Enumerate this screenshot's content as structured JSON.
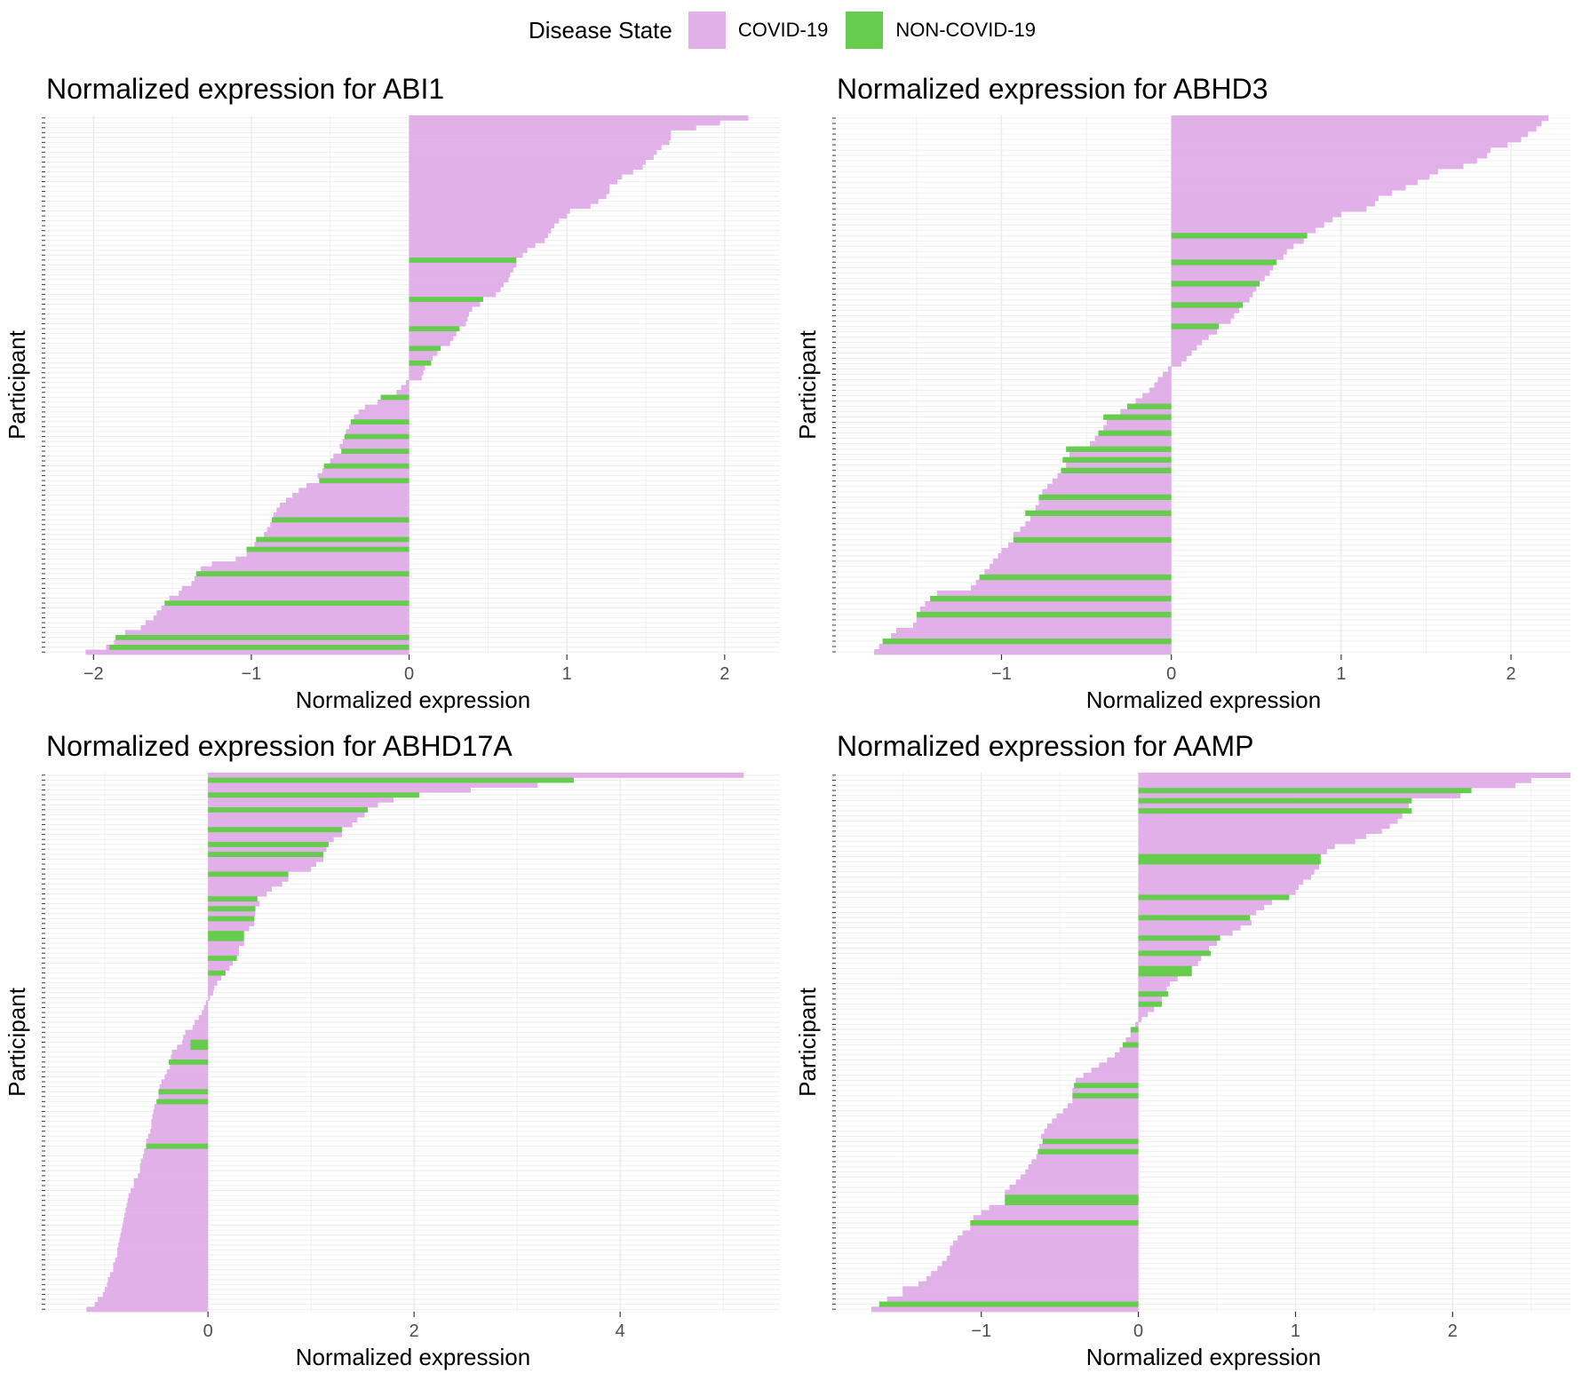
{
  "legend": {
    "title": "Disease State",
    "items": [
      {
        "label": "COVID-19",
        "color": "#e2b0e8"
      },
      {
        "label": "NON-COVID-19",
        "color": "#66cc4d"
      }
    ]
  },
  "chart_data": [
    {
      "type": "bar",
      "orientation": "horizontal",
      "title": "Normalized expression for ABI1",
      "xlabel": "Normalized expression",
      "ylabel": "Participant",
      "xlim": [
        -2.3,
        2.35
      ],
      "xticks": [
        -2,
        -1,
        0,
        1,
        2
      ],
      "grid": true,
      "series": [
        {
          "name": "COVID-19",
          "values": [
            2.15,
            1.97,
            1.82,
            1.66,
            1.66,
            1.65,
            1.6,
            1.57,
            1.55,
            1.5,
            1.48,
            1.42,
            1.35,
            1.32,
            1.27,
            1.27,
            1.25,
            1.2,
            1.15,
            1.02,
            1.0,
            0.95,
            0.92,
            0.9,
            0.88,
            0.86,
            0.8,
            0.75,
            0.72,
            null,
            0.68,
            0.66,
            0.64,
            0.63,
            0.6,
            0.58,
            0.55,
            null,
            0.45,
            0.4,
            0.38,
            0.37,
            0.36,
            null,
            0.3,
            0.28,
            0.26,
            null,
            0.18,
            0.15,
            null,
            0.1,
            0.09,
            0.08,
            -0.02,
            -0.05,
            -0.08,
            null,
            -0.2,
            -0.28,
            -0.32,
            -0.35,
            null,
            -0.38,
            -0.4,
            null,
            -0.42,
            -0.44,
            null,
            -0.48,
            -0.5,
            null,
            -0.55,
            -0.58,
            null,
            -0.65,
            -0.7,
            -0.74,
            -0.78,
            -0.82,
            -0.84,
            -0.86,
            null,
            -0.88,
            -0.9,
            -0.92,
            null,
            -0.98,
            null,
            -1.03,
            -1.1,
            -1.25,
            -1.32,
            null,
            -1.36,
            -1.38,
            -1.44,
            -1.46,
            -1.52,
            null,
            -1.57,
            -1.6,
            -1.62,
            -1.67,
            -1.7,
            -1.8,
            -1.83,
            -1.87,
            -1.92,
            -2.05
          ]
        },
        {
          "name": "NON-COVID-19",
          "values": [
            null,
            null,
            null,
            null,
            null,
            null,
            null,
            null,
            null,
            null,
            null,
            null,
            null,
            null,
            null,
            null,
            null,
            null,
            null,
            null,
            null,
            null,
            null,
            null,
            null,
            null,
            null,
            null,
            null,
            0.68,
            null,
            null,
            null,
            null,
            null,
            null,
            null,
            0.47,
            null,
            null,
            null,
            null,
            null,
            0.32,
            null,
            null,
            null,
            0.2,
            null,
            null,
            0.14,
            null,
            null,
            null,
            null,
            null,
            null,
            -0.18,
            null,
            null,
            null,
            null,
            -0.37,
            null,
            null,
            -0.41,
            null,
            null,
            -0.43,
            null,
            null,
            -0.54,
            null,
            null,
            -0.57,
            null,
            null,
            null,
            null,
            null,
            null,
            null,
            -0.87,
            null,
            null,
            null,
            -0.97,
            null,
            -1.03,
            null,
            null,
            null,
            null,
            -1.35,
            null,
            null,
            null,
            null,
            null,
            -1.55,
            null,
            null,
            null,
            null,
            null,
            null,
            -1.86,
            null,
            -1.9,
            null
          ]
        }
      ]
    },
    {
      "type": "bar",
      "orientation": "horizontal",
      "title": "Normalized expression for ABHD3",
      "xlabel": "Normalized expression",
      "ylabel": "Participant",
      "xlim": [
        -1.97,
        2.35
      ],
      "xticks": [
        -1,
        0,
        1,
        2
      ],
      "grid": true,
      "series": [
        {
          "name": "COVID-19",
          "values": [
            2.22,
            2.18,
            2.15,
            2.1,
            2.06,
            1.98,
            1.88,
            1.86,
            1.8,
            1.72,
            1.57,
            1.52,
            1.45,
            1.38,
            1.3,
            1.22,
            1.2,
            1.15,
            1.0,
            0.95,
            0.9,
            0.85,
            null,
            0.78,
            0.72,
            0.68,
            0.66,
            null,
            0.6,
            0.58,
            0.55,
            null,
            0.5,
            0.48,
            0.46,
            null,
            0.4,
            0.37,
            0.35,
            null,
            0.27,
            0.22,
            0.18,
            0.15,
            0.12,
            0.09,
            0.06,
            -0.02,
            -0.05,
            -0.08,
            -0.1,
            -0.13,
            -0.17,
            -0.21,
            null,
            -0.3,
            null,
            -0.38,
            -0.4,
            null,
            -0.45,
            -0.48,
            null,
            -0.6,
            null,
            -0.62,
            null,
            -0.67,
            -0.7,
            -0.73,
            -0.76,
            null,
            -0.78,
            -0.8,
            null,
            -0.83,
            -0.86,
            -0.89,
            -0.93,
            null,
            -0.96,
            -1.0,
            -1.02,
            -1.05,
            -1.07,
            -1.1,
            null,
            -1.15,
            -1.18,
            -1.38,
            null,
            -1.45,
            -1.48,
            null,
            -1.5,
            -1.52,
            -1.62,
            -1.65,
            -1.68,
            -1.72,
            -1.75
          ]
        },
        {
          "name": "NON-COVID-19",
          "values": [
            null,
            null,
            null,
            null,
            null,
            null,
            null,
            null,
            null,
            null,
            null,
            null,
            null,
            null,
            null,
            null,
            null,
            null,
            null,
            null,
            null,
            null,
            0.8,
            null,
            null,
            null,
            null,
            0.62,
            null,
            null,
            null,
            0.52,
            null,
            null,
            null,
            0.42,
            null,
            null,
            null,
            0.28,
            null,
            null,
            null,
            null,
            null,
            null,
            null,
            null,
            null,
            null,
            null,
            null,
            null,
            null,
            -0.26,
            null,
            -0.4,
            null,
            null,
            -0.43,
            null,
            null,
            -0.62,
            null,
            -0.64,
            null,
            -0.65,
            null,
            null,
            null,
            null,
            -0.78,
            null,
            null,
            -0.86,
            null,
            null,
            null,
            null,
            -0.93,
            null,
            null,
            null,
            null,
            null,
            null,
            -1.13,
            null,
            null,
            null,
            -1.42,
            null,
            null,
            -1.5,
            null,
            null,
            null,
            null,
            -1.7,
            null,
            null
          ]
        }
      ]
    },
    {
      "type": "bar",
      "orientation": "horizontal",
      "title": "Normalized expression for ABHD17A",
      "xlabel": "Normalized expression",
      "ylabel": "Participant",
      "xlim": [
        -1.57,
        5.55
      ],
      "xticks": [
        0,
        2,
        4
      ],
      "grid": true,
      "series": [
        {
          "name": "COVID-19",
          "values": [
            5.2,
            null,
            3.2,
            2.55,
            null,
            1.8,
            1.65,
            null,
            1.52,
            1.45,
            1.4,
            null,
            1.3,
            1.22,
            null,
            1.15,
            null,
            1.12,
            1.05,
            1.0,
            null,
            0.78,
            0.72,
            0.62,
            0.57,
            null,
            0.5,
            null,
            0.46,
            null,
            0.45,
            0.4,
            null,
            null,
            0.35,
            0.3,
            0.3,
            null,
            0.24,
            0.21,
            null,
            0.13,
            0.09,
            0.06,
            0.05,
            0.02,
            -0.02,
            -0.04,
            -0.06,
            -0.09,
            -0.13,
            -0.15,
            -0.22,
            -0.24,
            -0.25,
            -0.3,
            -0.35,
            -0.36,
            null,
            -0.37,
            -0.4,
            -0.42,
            -0.45,
            -0.47,
            null,
            -0.48,
            null,
            -0.52,
            -0.53,
            -0.54,
            -0.55,
            -0.55,
            -0.56,
            -0.58,
            -0.6,
            null,
            -0.62,
            -0.63,
            -0.65,
            -0.66,
            -0.66,
            -0.68,
            -0.72,
            -0.72,
            -0.75,
            -0.77,
            -0.78,
            -0.79,
            -0.8,
            -0.81,
            -0.82,
            -0.83,
            -0.84,
            -0.85,
            -0.86,
            -0.87,
            -0.88,
            -0.88,
            -0.9,
            -0.92,
            -0.92,
            -0.95,
            -0.97,
            -0.98,
            -1.0,
            -1.02,
            -1.07,
            -1.1,
            -1.18
          ]
        },
        {
          "name": "NON-COVID-19",
          "values": [
            null,
            3.55,
            null,
            null,
            2.05,
            null,
            null,
            1.55,
            null,
            null,
            null,
            1.3,
            null,
            null,
            1.17,
            null,
            1.12,
            null,
            null,
            null,
            0.78,
            null,
            null,
            null,
            null,
            0.48,
            null,
            0.46,
            null,
            0.45,
            null,
            null,
            0.35,
            0.35,
            null,
            null,
            null,
            0.28,
            null,
            null,
            0.17,
            null,
            null,
            null,
            null,
            null,
            null,
            null,
            null,
            null,
            null,
            null,
            null,
            null,
            -0.17,
            -0.17,
            null,
            null,
            -0.38,
            null,
            null,
            null,
            null,
            null,
            -0.48,
            null,
            -0.5,
            null,
            null,
            null,
            null,
            null,
            null,
            null,
            null,
            -0.6,
            null,
            null,
            null,
            null,
            null,
            null,
            null,
            null,
            null,
            null,
            null,
            null,
            null,
            null,
            null,
            null,
            null,
            null,
            null,
            null,
            null,
            null,
            null,
            null,
            null,
            null,
            null,
            null,
            null,
            null,
            null,
            null,
            null
          ]
        }
      ]
    },
    {
      "type": "bar",
      "orientation": "horizontal",
      "title": "Normalized expression for AAMP",
      "xlabel": "Normalized expression",
      "ylabel": "Participant",
      "xlim": [
        -1.92,
        2.75
      ],
      "xticks": [
        -1,
        0,
        1,
        2
      ],
      "grid": true,
      "series": [
        {
          "name": "COVID-19",
          "values": [
            2.75,
            2.5,
            2.4,
            null,
            2.05,
            null,
            1.72,
            null,
            1.68,
            1.65,
            1.6,
            1.55,
            1.45,
            1.38,
            1.25,
            1.2,
            null,
            null,
            1.15,
            1.12,
            1.1,
            1.05,
            1.02,
            1.0,
            null,
            0.85,
            0.8,
            0.75,
            null,
            0.72,
            0.65,
            0.6,
            null,
            0.5,
            0.45,
            null,
            0.4,
            0.38,
            null,
            null,
            0.25,
            0.2,
            0.18,
            null,
            0.15,
            null,
            0.1,
            0.06,
            0.02,
            -0.02,
            null,
            -0.05,
            -0.08,
            null,
            -0.12,
            -0.15,
            -0.2,
            -0.25,
            -0.3,
            -0.35,
            -0.4,
            null,
            -0.42,
            null,
            -0.42,
            -0.45,
            -0.48,
            -0.52,
            -0.55,
            -0.58,
            -0.6,
            -0.62,
            null,
            -0.63,
            null,
            -0.65,
            -0.68,
            -0.7,
            -0.72,
            -0.75,
            -0.78,
            -0.82,
            -0.85,
            null,
            null,
            -0.95,
            -1.0,
            -1.05,
            null,
            -1.07,
            -1.12,
            -1.15,
            -1.18,
            -1.2,
            -1.2,
            -1.22,
            -1.25,
            -1.28,
            -1.32,
            -1.35,
            -1.4,
            -1.5,
            -1.5,
            -1.6,
            null,
            -1.7
          ]
        },
        {
          "name": "NON-COVID-19",
          "values": [
            null,
            null,
            null,
            2.12,
            null,
            1.74,
            null,
            1.74,
            null,
            null,
            null,
            null,
            null,
            null,
            null,
            null,
            1.16,
            1.16,
            null,
            null,
            null,
            null,
            null,
            null,
            0.96,
            null,
            null,
            null,
            0.71,
            null,
            null,
            null,
            0.52,
            null,
            null,
            0.46,
            null,
            null,
            0.34,
            0.34,
            null,
            null,
            null,
            0.19,
            null,
            0.15,
            null,
            null,
            null,
            null,
            -0.05,
            null,
            null,
            -0.1,
            null,
            null,
            null,
            null,
            null,
            null,
            null,
            -0.41,
            null,
            -0.42,
            null,
            null,
            null,
            null,
            null,
            null,
            null,
            null,
            -0.61,
            null,
            -0.64,
            null,
            null,
            null,
            null,
            null,
            null,
            null,
            null,
            -0.85,
            -0.85,
            null,
            null,
            null,
            -1.07,
            null,
            null,
            null,
            null,
            null,
            null,
            null,
            null,
            null,
            null,
            null,
            null,
            null,
            null,
            null,
            -1.65,
            null
          ]
        }
      ]
    }
  ]
}
